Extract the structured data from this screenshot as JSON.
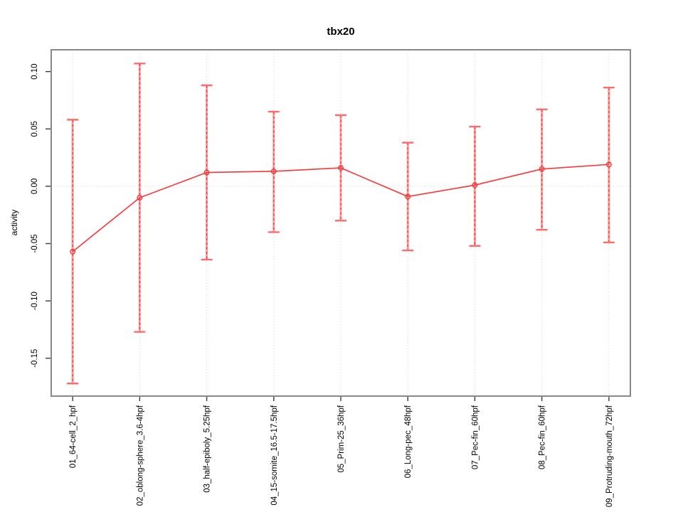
{
  "chart_data": {
    "type": "line",
    "title": "tbx20",
    "ylabel": "activity",
    "xlabel": "",
    "legend": "none",
    "grid": "dotted vertical gridline at each category and dotted horizontal line at y=0",
    "categories": [
      "01_64-cell_2_hpf",
      "02_oblong-sphere_3.6-4hpf",
      "03_half-epiboly_5.25hpf",
      "04_15-somite_16.5-17.5hpf",
      "05_Prim-25_36hpf",
      "06_Long-pec_48hpf",
      "07_Pec-fin_60hpf",
      "08_Pec-fin_60hpf",
      "09_Protruding-mouth_72hpf"
    ],
    "series": [
      {
        "name": "activity",
        "values": [
          -0.057,
          -0.01,
          0.012,
          0.013,
          0.016,
          -0.009,
          0.001,
          0.015,
          0.019
        ]
      }
    ],
    "error_upper": [
      0.058,
      0.107,
      0.088,
      0.065,
      0.062,
      0.038,
      0.052,
      0.067,
      0.086
    ],
    "error_lower": [
      -0.172,
      -0.127,
      -0.064,
      -0.04,
      -0.03,
      -0.056,
      -0.052,
      -0.038,
      -0.049
    ],
    "ylim": [
      -0.183,
      0.119
    ],
    "xlim": [
      0.68,
      9.32
    ],
    "yticks": {
      "values": [
        -0.15,
        -0.1,
        -0.05,
        0.0,
        0.05,
        0.1
      ],
      "labels": [
        "-0.15",
        "-0.10",
        "-0.05",
        "0.00",
        "0.05",
        "0.10"
      ]
    },
    "marker": "open-circle",
    "colors": {
      "line": "#ff3333",
      "marker": "#ef3b3b",
      "errorbar_soft": "#ff9c9c",
      "errorbar_dash": "#e63939",
      "errorbar_cap": "#ff6b6b",
      "gridline": "#d6d6d6",
      "box": "#888888",
      "tick": "#3a3a3a",
      "text": "#000000"
    }
  }
}
